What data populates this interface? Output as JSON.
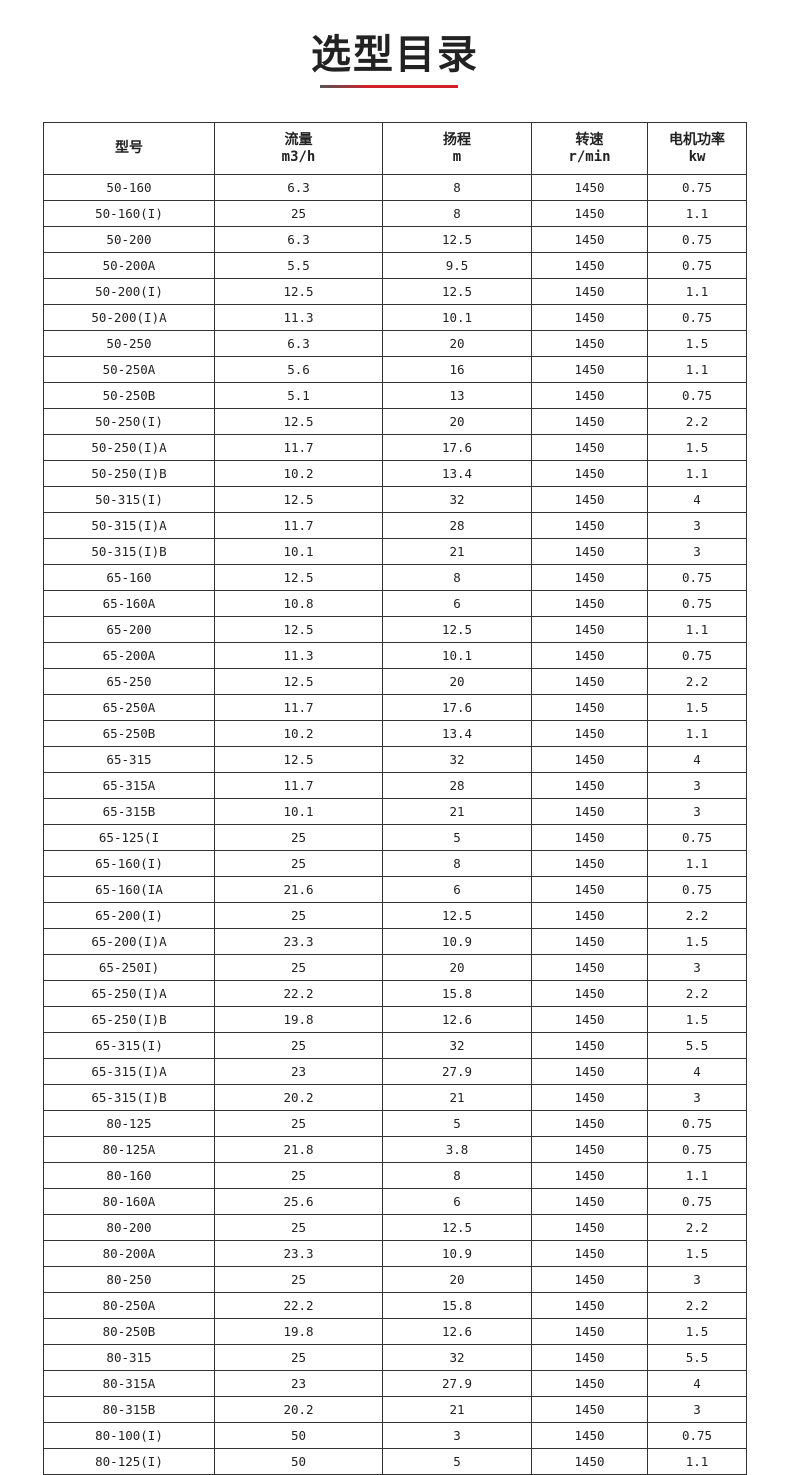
{
  "header": {
    "title": "选型目录"
  },
  "table": {
    "columns": [
      {
        "name": "型号"
      },
      {
        "name": "流量",
        "unit": "m3/h"
      },
      {
        "name": "扬程",
        "unit": "m"
      },
      {
        "name": "转速",
        "unit": "r/min"
      },
      {
        "name": "电机功率",
        "unit": "kw"
      }
    ],
    "rows": [
      [
        "50-160",
        "6.3",
        "8",
        "1450",
        "0.75"
      ],
      [
        "50-160(I)",
        "25",
        "8",
        "1450",
        "1.1"
      ],
      [
        "50-200",
        "6.3",
        "12.5",
        "1450",
        "0.75"
      ],
      [
        "50-200A",
        "5.5",
        "9.5",
        "1450",
        "0.75"
      ],
      [
        "50-200(I)",
        "12.5",
        "12.5",
        "1450",
        "1.1"
      ],
      [
        "50-200(I)A",
        "11.3",
        "10.1",
        "1450",
        "0.75"
      ],
      [
        "50-250",
        "6.3",
        "20",
        "1450",
        "1.5"
      ],
      [
        "50-250A",
        "5.6",
        "16",
        "1450",
        "1.1"
      ],
      [
        "50-250B",
        "5.1",
        "13",
        "1450",
        "0.75"
      ],
      [
        "50-250(I)",
        "12.5",
        "20",
        "1450",
        "2.2"
      ],
      [
        "50-250(I)A",
        "11.7",
        "17.6",
        "1450",
        "1.5"
      ],
      [
        "50-250(I)B",
        "10.2",
        "13.4",
        "1450",
        "1.1"
      ],
      [
        "50-315(I)",
        "12.5",
        "32",
        "1450",
        "4"
      ],
      [
        "50-315(I)A",
        "11.7",
        "28",
        "1450",
        "3"
      ],
      [
        "50-315(I)B",
        "10.1",
        "21",
        "1450",
        "3"
      ],
      [
        "65-160",
        "12.5",
        "8",
        "1450",
        "0.75"
      ],
      [
        "65-160A",
        "10.8",
        "6",
        "1450",
        "0.75"
      ],
      [
        "65-200",
        "12.5",
        "12.5",
        "1450",
        "1.1"
      ],
      [
        "65-200A",
        "11.3",
        "10.1",
        "1450",
        "0.75"
      ],
      [
        "65-250",
        "12.5",
        "20",
        "1450",
        "2.2"
      ],
      [
        "65-250A",
        "11.7",
        "17.6",
        "1450",
        "1.5"
      ],
      [
        "65-250B",
        "10.2",
        "13.4",
        "1450",
        "1.1"
      ],
      [
        "65-315",
        "12.5",
        "32",
        "1450",
        "4"
      ],
      [
        "65-315A",
        "11.7",
        "28",
        "1450",
        "3"
      ],
      [
        "65-315B",
        "10.1",
        "21",
        "1450",
        "3"
      ],
      [
        "65-125(I",
        "25",
        "5",
        "1450",
        "0.75"
      ],
      [
        "65-160(I)",
        "25",
        "8",
        "1450",
        "1.1"
      ],
      [
        "65-160(IA",
        "21.6",
        "6",
        "1450",
        "0.75"
      ],
      [
        "65-200(I)",
        "25",
        "12.5",
        "1450",
        "2.2"
      ],
      [
        "65-200(I)A",
        "23.3",
        "10.9",
        "1450",
        "1.5"
      ],
      [
        "65-250I)",
        "25",
        "20",
        "1450",
        "3"
      ],
      [
        "65-250(I)A",
        "22.2",
        "15.8",
        "1450",
        "2.2"
      ],
      [
        "65-250(I)B",
        "19.8",
        "12.6",
        "1450",
        "1.5"
      ],
      [
        "65-315(I)",
        "25",
        "32",
        "1450",
        "5.5"
      ],
      [
        "65-315(I)A",
        "23",
        "27.9",
        "1450",
        "4"
      ],
      [
        "65-315(I)B",
        "20.2",
        "21",
        "1450",
        "3"
      ],
      [
        "80-125",
        "25",
        "5",
        "1450",
        "0.75"
      ],
      [
        "80-125A",
        "21.8",
        "3.8",
        "1450",
        "0.75"
      ],
      [
        "80-160",
        "25",
        "8",
        "1450",
        "1.1"
      ],
      [
        "80-160A",
        "25.6",
        "6",
        "1450",
        "0.75"
      ],
      [
        "80-200",
        "25",
        "12.5",
        "1450",
        "2.2"
      ],
      [
        "80-200A",
        "23.3",
        "10.9",
        "1450",
        "1.5"
      ],
      [
        "80-250",
        "25",
        "20",
        "1450",
        "3"
      ],
      [
        "80-250A",
        "22.2",
        "15.8",
        "1450",
        "2.2"
      ],
      [
        "80-250B",
        "19.8",
        "12.6",
        "1450",
        "1.5"
      ],
      [
        "80-315",
        "25",
        "32",
        "1450",
        "5.5"
      ],
      [
        "80-315A",
        "23",
        "27.9",
        "1450",
        "4"
      ],
      [
        "80-315B",
        "20.2",
        "21",
        "1450",
        "3"
      ],
      [
        "80-100(I)",
        "50",
        "3",
        "1450",
        "0.75"
      ],
      [
        "80-125(I)",
        "50",
        "5",
        "1450",
        "1.1"
      ]
    ]
  }
}
